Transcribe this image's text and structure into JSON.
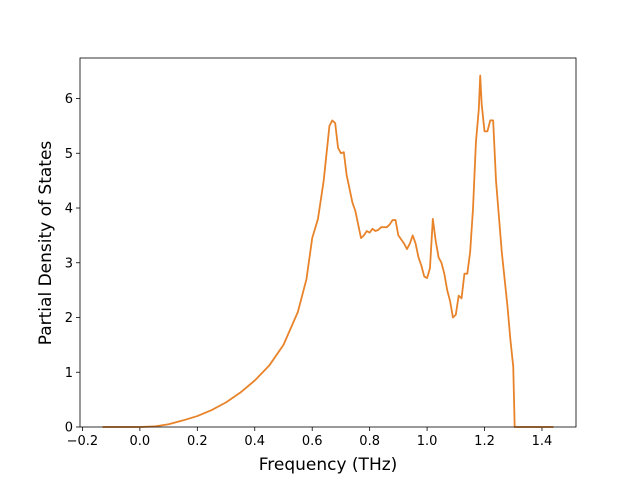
{
  "chart_data": {
    "type": "line",
    "x_label": "Frequency (THz)",
    "y_label": "Partial Density of States",
    "xlim": [
      -0.2085,
      1.5185
    ],
    "ylim": [
      0,
      6.74
    ],
    "xticks": [
      {
        "value": -0.2,
        "label": "−0.2"
      },
      {
        "value": 0.0,
        "label": "0.0"
      },
      {
        "value": 0.2,
        "label": "0.2"
      },
      {
        "value": 0.4,
        "label": "0.4"
      },
      {
        "value": 0.6,
        "label": "0.6"
      },
      {
        "value": 0.8,
        "label": "0.8"
      },
      {
        "value": 1.0,
        "label": "1.0"
      },
      {
        "value": 1.2,
        "label": "1.2"
      },
      {
        "value": 1.4,
        "label": "1.4"
      }
    ],
    "yticks": [
      0,
      1,
      2,
      3,
      4,
      5,
      6
    ],
    "grid": false,
    "series": [
      {
        "color": "#e8832a",
        "x": [
          -0.13,
          0.0,
          0.05,
          0.1,
          0.15,
          0.2,
          0.25,
          0.3,
          0.35,
          0.4,
          0.45,
          0.5,
          0.55,
          0.58,
          0.6,
          0.62,
          0.64,
          0.65,
          0.66,
          0.67,
          0.68,
          0.69,
          0.7,
          0.71,
          0.72,
          0.74,
          0.75,
          0.77,
          0.78,
          0.79,
          0.8,
          0.81,
          0.82,
          0.83,
          0.84,
          0.86,
          0.87,
          0.88,
          0.89,
          0.9,
          0.92,
          0.93,
          0.94,
          0.95,
          0.96,
          0.97,
          0.98,
          0.99,
          1.0,
          1.01,
          1.02,
          1.03,
          1.04,
          1.05,
          1.06,
          1.07,
          1.08,
          1.09,
          1.1,
          1.11,
          1.12,
          1.13,
          1.14,
          1.15,
          1.16,
          1.17,
          1.18,
          1.185,
          1.19,
          1.2,
          1.21,
          1.22,
          1.23,
          1.24,
          1.26,
          1.28,
          1.29,
          1.3,
          1.305,
          1.44
        ],
        "values": [
          0,
          0,
          0.01,
          0.05,
          0.12,
          0.2,
          0.31,
          0.45,
          0.63,
          0.85,
          1.12,
          1.5,
          2.1,
          2.7,
          3.45,
          3.8,
          4.5,
          5.0,
          5.5,
          5.6,
          5.55,
          5.1,
          5.0,
          5.02,
          4.6,
          4.1,
          3.95,
          3.45,
          3.5,
          3.58,
          3.55,
          3.62,
          3.58,
          3.6,
          3.65,
          3.65,
          3.7,
          3.78,
          3.78,
          3.5,
          3.35,
          3.25,
          3.35,
          3.5,
          3.35,
          3.1,
          2.95,
          2.75,
          2.72,
          2.9,
          3.8,
          3.4,
          3.1,
          3.0,
          2.8,
          2.5,
          2.3,
          2.0,
          2.05,
          2.4,
          2.35,
          2.8,
          2.8,
          3.2,
          4.0,
          5.2,
          5.8,
          6.42,
          5.9,
          5.4,
          5.4,
          5.6,
          5.6,
          4.5,
          3.2,
          2.2,
          1.6,
          1.1,
          0,
          0
        ]
      }
    ]
  }
}
